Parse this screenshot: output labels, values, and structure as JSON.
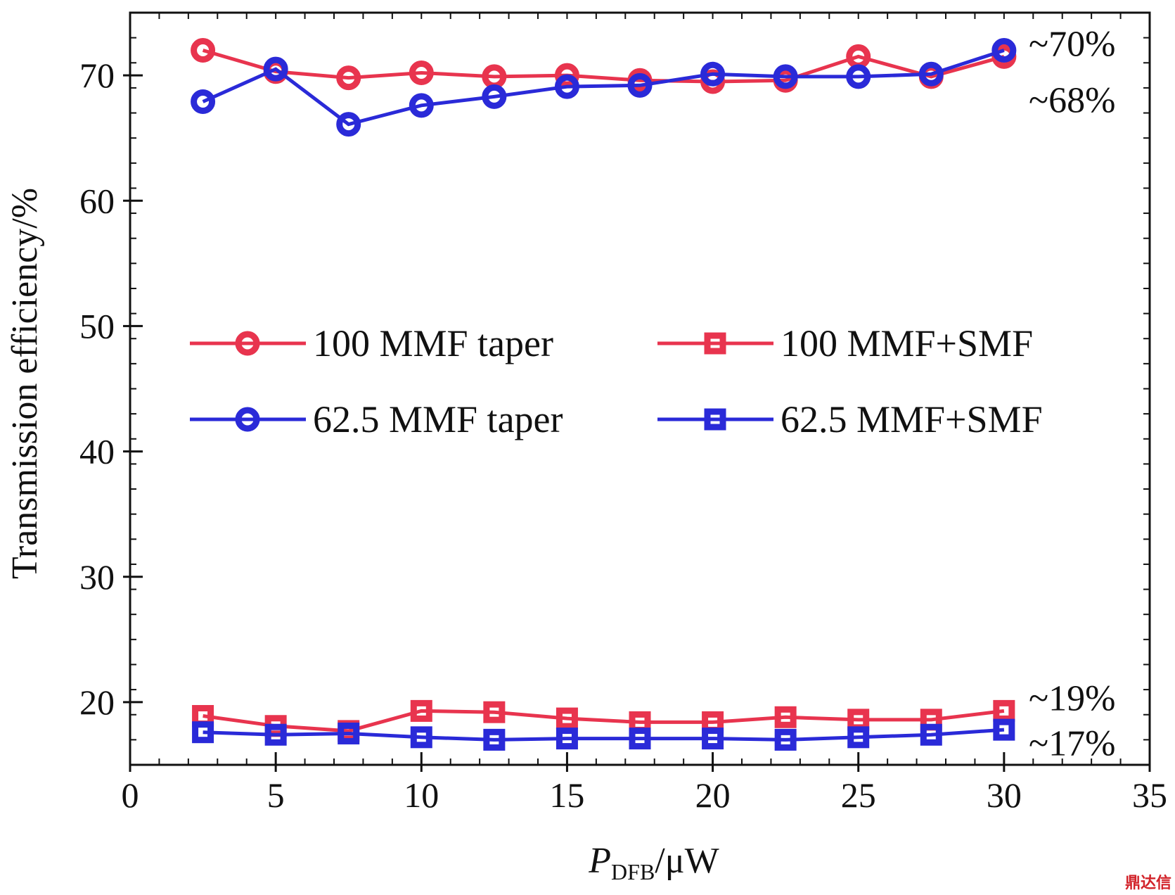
{
  "chart_data": {
    "type": "line",
    "title": "",
    "xlabel_italic": "P",
    "xlabel_sub": "DFB",
    "xlabel_unit": "/μW",
    "ylabel": "Transmission efficiency/%",
    "xlim": [
      0,
      35
    ],
    "ylim": [
      15,
      75
    ],
    "x_ticks": [
      0,
      5,
      10,
      15,
      20,
      25,
      30,
      35
    ],
    "y_ticks": [
      20,
      30,
      40,
      50,
      60,
      70
    ],
    "x": [
      2.5,
      5,
      7.5,
      10,
      12.5,
      15,
      17.5,
      20,
      22.5,
      25,
      27.5,
      30
    ],
    "series": [
      {
        "name": "100 MMF taper",
        "color": "#e8344e",
        "marker": "circle",
        "values": [
          72.0,
          70.3,
          69.8,
          70.2,
          69.9,
          70.0,
          69.6,
          69.5,
          69.6,
          71.5,
          69.9,
          71.5
        ]
      },
      {
        "name": "62.5 MMF taper",
        "color": "#2a2ad8",
        "marker": "circle",
        "values": [
          67.9,
          70.5,
          66.1,
          67.6,
          68.3,
          69.1,
          69.2,
          70.1,
          69.9,
          69.9,
          70.1,
          72.0
        ]
      },
      {
        "name": "100 MMF+SMF",
        "color": "#e8344e",
        "marker": "square",
        "values": [
          18.9,
          18.1,
          17.7,
          19.3,
          19.2,
          18.7,
          18.4,
          18.4,
          18.8,
          18.6,
          18.6,
          19.3
        ]
      },
      {
        "name": "62.5 MMF+SMF",
        "color": "#2a2ad8",
        "marker": "square",
        "values": [
          17.6,
          17.4,
          17.5,
          17.2,
          17.0,
          17.1,
          17.1,
          17.1,
          17.0,
          17.2,
          17.4,
          17.8
        ]
      }
    ],
    "annotations": [
      {
        "text": "~70%",
        "near_value": 72.5
      },
      {
        "text": "~68%",
        "near_value": 68.0
      },
      {
        "text": "~19%",
        "near_value": 20.3
      },
      {
        "text": "~17%",
        "near_value": 16.7
      }
    ],
    "legend": "center, two columns",
    "grid": false
  },
  "watermark": "鼎达信"
}
